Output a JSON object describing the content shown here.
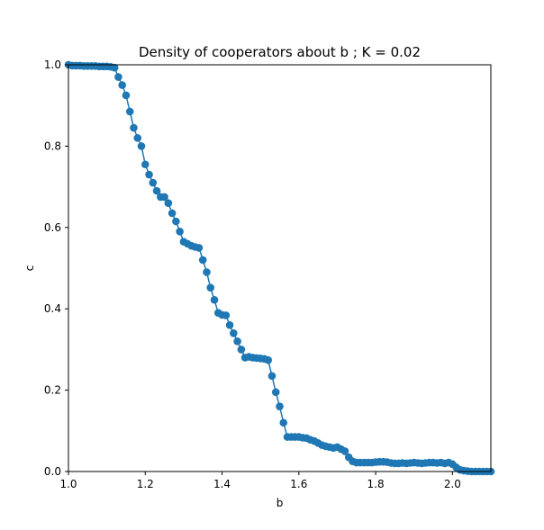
{
  "chart_data": {
    "type": "line",
    "title": "Density of cooperators about b ; K = 0.02",
    "xlabel": "b",
    "ylabel": "c",
    "xlim": [
      1.0,
      2.1
    ],
    "ylim": [
      0.0,
      1.0
    ],
    "xticks": [
      1.0,
      1.2,
      1.4,
      1.6,
      1.8,
      2.0
    ],
    "xtick_labels": [
      "1.0",
      "1.2",
      "1.4",
      "1.6",
      "1.8",
      "2.0"
    ],
    "yticks": [
      0.0,
      0.2,
      0.4,
      0.6,
      0.8,
      1.0
    ],
    "ytick_labels": [
      "0.0",
      "0.2",
      "0.4",
      "0.6",
      "0.8",
      "1.0"
    ],
    "grid": false,
    "legend": "none",
    "colors": {
      "series": "#1f77b4",
      "axes": "#000000",
      "background": "#ffffff"
    },
    "series": [
      {
        "marker": "circle",
        "x": [
          1.0,
          1.01,
          1.02,
          1.03,
          1.04,
          1.05,
          1.06,
          1.07,
          1.08,
          1.09,
          1.1,
          1.11,
          1.12,
          1.13,
          1.14,
          1.15,
          1.16,
          1.17,
          1.18,
          1.19,
          1.2,
          1.21,
          1.22,
          1.23,
          1.24,
          1.25,
          1.26,
          1.27,
          1.28,
          1.29,
          1.3,
          1.31,
          1.32,
          1.33,
          1.34,
          1.35,
          1.36,
          1.37,
          1.38,
          1.39,
          1.4,
          1.41,
          1.42,
          1.43,
          1.44,
          1.45,
          1.46,
          1.47,
          1.48,
          1.49,
          1.5,
          1.51,
          1.52,
          1.53,
          1.54,
          1.55,
          1.56,
          1.57,
          1.58,
          1.59,
          1.6,
          1.61,
          1.62,
          1.63,
          1.64,
          1.65,
          1.66,
          1.67,
          1.68,
          1.69,
          1.7,
          1.71,
          1.72,
          1.73,
          1.74,
          1.75,
          1.76,
          1.77,
          1.78,
          1.79,
          1.8,
          1.81,
          1.82,
          1.83,
          1.84,
          1.85,
          1.86,
          1.87,
          1.88,
          1.89,
          1.9,
          1.91,
          1.92,
          1.93,
          1.94,
          1.95,
          1.96,
          1.97,
          1.98,
          1.99,
          2.0,
          2.01,
          2.02,
          2.03,
          2.04,
          2.05,
          2.06,
          2.07,
          2.08,
          2.09,
          2.1
        ],
        "y": [
          1.0,
          0.998,
          0.998,
          0.998,
          0.997,
          0.997,
          0.997,
          0.997,
          0.996,
          0.996,
          0.996,
          0.995,
          0.993,
          0.97,
          0.95,
          0.925,
          0.885,
          0.845,
          0.82,
          0.8,
          0.755,
          0.73,
          0.71,
          0.69,
          0.675,
          0.675,
          0.66,
          0.635,
          0.615,
          0.59,
          0.565,
          0.56,
          0.555,
          0.552,
          0.55,
          0.52,
          0.49,
          0.452,
          0.422,
          0.39,
          0.385,
          0.384,
          0.36,
          0.34,
          0.32,
          0.3,
          0.28,
          0.282,
          0.28,
          0.279,
          0.278,
          0.277,
          0.274,
          0.235,
          0.195,
          0.16,
          0.12,
          0.085,
          0.085,
          0.085,
          0.085,
          0.083,
          0.082,
          0.078,
          0.075,
          0.07,
          0.065,
          0.062,
          0.06,
          0.058,
          0.06,
          0.055,
          0.05,
          0.035,
          0.025,
          0.022,
          0.022,
          0.022,
          0.022,
          0.022,
          0.023,
          0.024,
          0.024,
          0.023,
          0.021,
          0.02,
          0.02,
          0.021,
          0.02,
          0.021,
          0.022,
          0.021,
          0.02,
          0.021,
          0.022,
          0.022,
          0.021,
          0.022,
          0.02,
          0.022,
          0.018,
          0.01,
          0.004,
          0.002,
          0.001,
          0.0,
          0.0,
          0.0,
          0.0,
          0.0,
          0.0
        ]
      }
    ]
  }
}
